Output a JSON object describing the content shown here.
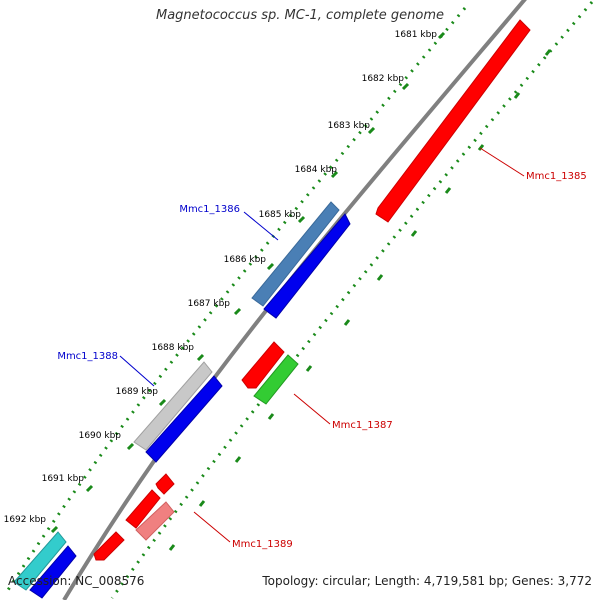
{
  "title": "Magnetococcus sp. MC-1, complete genome",
  "footer": {
    "accession": "Accession: NC_008576",
    "summary": "Topology: circular; Length: 4,719,581 bp; Genes: 3,772"
  },
  "scale_labels": [
    "1681 kbp",
    "1682 kbp",
    "1683 kbp",
    "1684 kbp",
    "1685 kbp",
    "1686 kbp",
    "1687 kbp",
    "1688 kbp",
    "1689 kbp",
    "1690 kbp",
    "1691 kbp",
    "1692 kbp"
  ],
  "gene_labels": [
    {
      "text": "Mmc1_1385",
      "color": "#cc0000"
    },
    {
      "text": "Mmc1_1386",
      "color": "#0000cc"
    },
    {
      "text": "Mmc1_1387",
      "color": "#cc0000"
    },
    {
      "text": "Mmc1_1388",
      "color": "#0000cc"
    },
    {
      "text": "Mmc1_1389",
      "color": "#cc0000"
    }
  ],
  "colors": {
    "backbone": "#808080",
    "ruler": "#1a8a1a",
    "red": "#ff0000",
    "blue": "#0000ee",
    "steelblue": "#4a7fb5",
    "lightgray": "#c8c8c8",
    "green": "#33cc33",
    "pink": "#f08080",
    "cyan": "#33cccc"
  }
}
